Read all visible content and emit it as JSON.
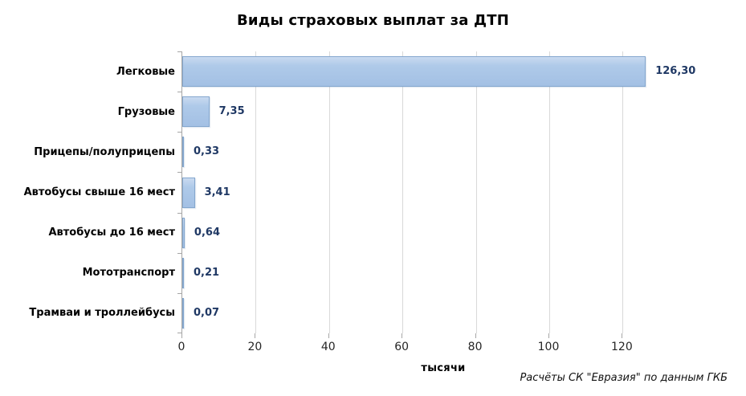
{
  "chart_data": {
    "type": "bar",
    "orientation": "horizontal",
    "title": "Виды страховых выплат за ДТП",
    "categories": [
      "Легковые",
      "Грузовые",
      "Прицепы/полуприцепы",
      "Автобусы свыше 16 мест",
      "Автобусы до 16 мест",
      "Мототранспорт",
      "Трамваи и троллейбусы"
    ],
    "values": [
      126.3,
      7.35,
      0.33,
      3.41,
      0.64,
      0.21,
      0.07
    ],
    "value_labels": [
      "126,30",
      "7,35",
      "0,33",
      "3,41",
      "0,64",
      "0,21",
      "0,07"
    ],
    "xlabel": "тысячи",
    "ylabel": "",
    "x_ticks": [
      0,
      20,
      40,
      60,
      80,
      100,
      120
    ],
    "xlim": [
      0,
      143
    ],
    "grid": true,
    "legend": false
  },
  "footer": {
    "source": "Расчёты СК \"Евразия\" по данным ГКБ"
  },
  "colors": {
    "bar_fill": "#A9C5E7",
    "bar_fill_light": "#C9DAF0",
    "bar_border": "#84A7CE",
    "value_label": "#1F3864",
    "gridline": "#D9D9D9",
    "axis": "#A6A6A6",
    "title_text": "#000000"
  }
}
